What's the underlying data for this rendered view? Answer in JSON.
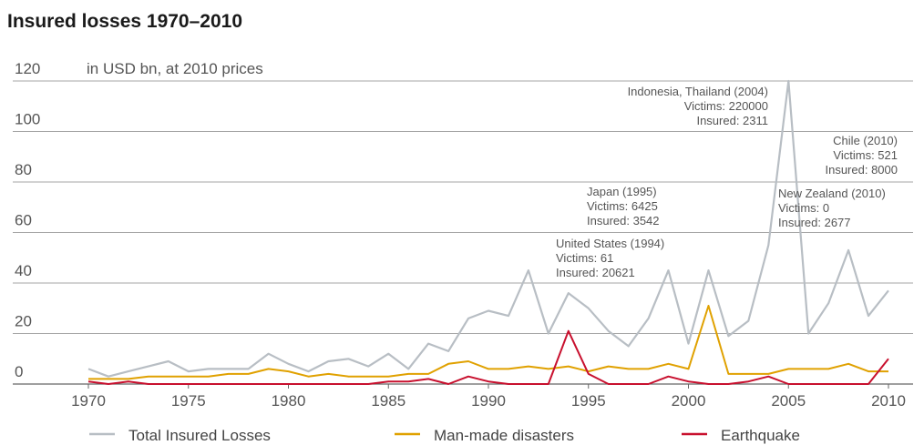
{
  "chart_data": {
    "type": "line",
    "title": "Insured losses 1970–2010",
    "ylabel": "in USD bn, at 2010 prices",
    "xlim": [
      1970,
      2010
    ],
    "ylim": [
      0,
      120
    ],
    "yticks": [
      "0",
      "20",
      "40",
      "60",
      "80",
      "100",
      "120"
    ],
    "xticks": [
      "1970",
      "1975",
      "1980",
      "1985",
      "1990",
      "1995",
      "2000",
      "2005",
      "2010"
    ],
    "x": [
      1970,
      1971,
      1972,
      1973,
      1974,
      1975,
      1976,
      1977,
      1978,
      1979,
      1980,
      1981,
      1982,
      1983,
      1984,
      1985,
      1986,
      1987,
      1988,
      1989,
      1990,
      1991,
      1992,
      1993,
      1994,
      1995,
      1996,
      1997,
      1998,
      1999,
      2000,
      2001,
      2002,
      2003,
      2004,
      2005,
      2006,
      2007,
      2008,
      2009,
      2010
    ],
    "series": [
      {
        "name": "Total Insured Losses",
        "color": "#b8bec4",
        "values": [
          6,
          3,
          5,
          7,
          9,
          5,
          6,
          6,
          6,
          12,
          8,
          5,
          9,
          10,
          7,
          12,
          6,
          16,
          13,
          26,
          29,
          27,
          45,
          20,
          36,
          30,
          21,
          15,
          26,
          45,
          16,
          45,
          19,
          25,
          55,
          120,
          20,
          32,
          53,
          27,
          37
        ]
      },
      {
        "name": "Man-made disasters",
        "color": "#e0a100",
        "values": [
          2,
          2,
          2,
          3,
          3,
          3,
          3,
          4,
          4,
          6,
          5,
          3,
          4,
          3,
          3,
          3,
          4,
          4,
          8,
          9,
          6,
          6,
          7,
          6,
          7,
          5,
          7,
          6,
          6,
          8,
          6,
          31,
          4,
          4,
          4,
          6,
          6,
          6,
          8,
          5,
          5
        ]
      },
      {
        "name": "Earthquake",
        "color": "#c8102e",
        "values": [
          1,
          0,
          1,
          0,
          0,
          0,
          0,
          0,
          0,
          0,
          0,
          0,
          0,
          0,
          0,
          1,
          1,
          2,
          0,
          3,
          1,
          0,
          0,
          0,
          21,
          4,
          0,
          0,
          0,
          3,
          1,
          0,
          0,
          1,
          3,
          0,
          0,
          0,
          0,
          0,
          10
        ]
      }
    ],
    "annotations": [
      {
        "lines": [
          "Indonesia, Thailand (2004)",
          "Victims: 220000",
          "Insured: 2311"
        ]
      },
      {
        "lines": [
          "Chile (2010)",
          "Victims: 521",
          "Insured: 8000"
        ]
      },
      {
        "lines": [
          "Japan (1995)",
          "Victims: 6425",
          "Insured: 3542"
        ]
      },
      {
        "lines": [
          "New Zealand (2010)",
          "Victims: 0",
          "Insured: 2677"
        ]
      },
      {
        "lines": [
          "United States (1994)",
          "Victims: 61",
          "Insured: 20621"
        ]
      }
    ],
    "grid": true,
    "legend_position": "bottom"
  }
}
